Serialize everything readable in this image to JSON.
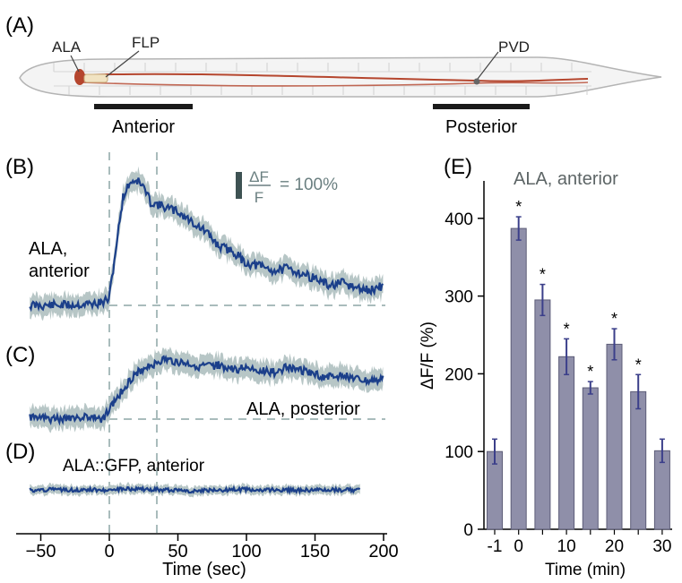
{
  "colors": {
    "trace": "#1b3f8a",
    "trace_band": "#b7c6c6",
    "guide": "#a9bcbc",
    "bar_fill": "#8f8fa9",
    "bar_edge": "#5d5d78",
    "errbar": "#3b3f8a",
    "worm_outline": "#b4b4b4",
    "worm_neuron": "#b5462e",
    "scale_text": "#6a7f80"
  },
  "panel_labels": {
    "a": "(A)",
    "b": "(B)",
    "c": "(C)",
    "d": "(D)",
    "e": "(E)"
  },
  "worm": {
    "label_ala": "ALA",
    "label_flp": "FLP",
    "label_pvd": "PVD",
    "anterior": "Anterior",
    "posterior": "Posterior"
  },
  "traces": {
    "b_label_line1": "ALA,",
    "b_label_line2": "anterior",
    "c_label": "ALA, posterior",
    "d_label": "ALA::GFP, anterior",
    "scale_numer": "ΔF",
    "scale_denom": "F",
    "scale_value": "= 100%"
  },
  "chart_data": [
    {
      "type": "line",
      "panel": "B",
      "name": "ALA, anterior",
      "xlabel": "Time (sec)",
      "xlim": [
        -60,
        200
      ],
      "xticks": [
        -50,
        0,
        50,
        100,
        150,
        200
      ],
      "stimulus_window": [
        0,
        35
      ],
      "x": [
        -58,
        -40,
        -20,
        -5,
        0,
        5,
        10,
        15,
        20,
        25,
        30,
        35,
        40,
        50,
        60,
        70,
        80,
        90,
        100,
        110,
        120,
        130,
        140,
        150,
        160,
        170,
        180,
        190,
        200
      ],
      "y": [
        0,
        0,
        2,
        5,
        15,
        120,
        220,
        250,
        255,
        240,
        210,
        205,
        200,
        190,
        170,
        150,
        120,
        110,
        85,
        80,
        70,
        75,
        65,
        55,
        40,
        45,
        35,
        30,
        40
      ]
    },
    {
      "type": "line",
      "panel": "C",
      "name": "ALA, posterior",
      "xlim": [
        -60,
        200
      ],
      "x": [
        -58,
        -40,
        -20,
        -5,
        0,
        10,
        20,
        30,
        40,
        50,
        60,
        70,
        80,
        90,
        100,
        110,
        120,
        130,
        140,
        150,
        160,
        170,
        180,
        190,
        200
      ],
      "y": [
        5,
        0,
        5,
        0,
        20,
        60,
        95,
        110,
        120,
        115,
        110,
        105,
        110,
        100,
        105,
        100,
        95,
        105,
        100,
        90,
        85,
        90,
        80,
        75,
        85
      ]
    },
    {
      "type": "line",
      "panel": "D",
      "name": "ALA::GFP, anterior",
      "xlim": [
        -60,
        200
      ],
      "x": [
        -58,
        -20,
        0,
        20,
        40,
        60,
        80,
        100,
        120,
        140,
        160,
        183
      ],
      "y": [
        0,
        0,
        0,
        2,
        0,
        -2,
        0,
        1,
        0,
        -1,
        0,
        0
      ]
    },
    {
      "type": "bar",
      "panel": "E",
      "title": "ALA, anterior",
      "xlabel": "Time (min)",
      "ylabel": "ΔF/F (%)",
      "ylim": [
        0,
        450
      ],
      "yticks": [
        0,
        100,
        200,
        300,
        400
      ],
      "xtick_labels": [
        "-1",
        "0",
        "10",
        "20",
        "30"
      ],
      "categories": [
        "-1",
        "0",
        "5",
        "10",
        "15",
        "20",
        "25",
        "30"
      ],
      "values": [
        100,
        387,
        295,
        222,
        182,
        238,
        177,
        101
      ],
      "errors": [
        16,
        15,
        20,
        23,
        8,
        20,
        22,
        15
      ],
      "significant": [
        false,
        true,
        true,
        true,
        true,
        true,
        true,
        false
      ],
      "sig_mark": "*"
    }
  ]
}
